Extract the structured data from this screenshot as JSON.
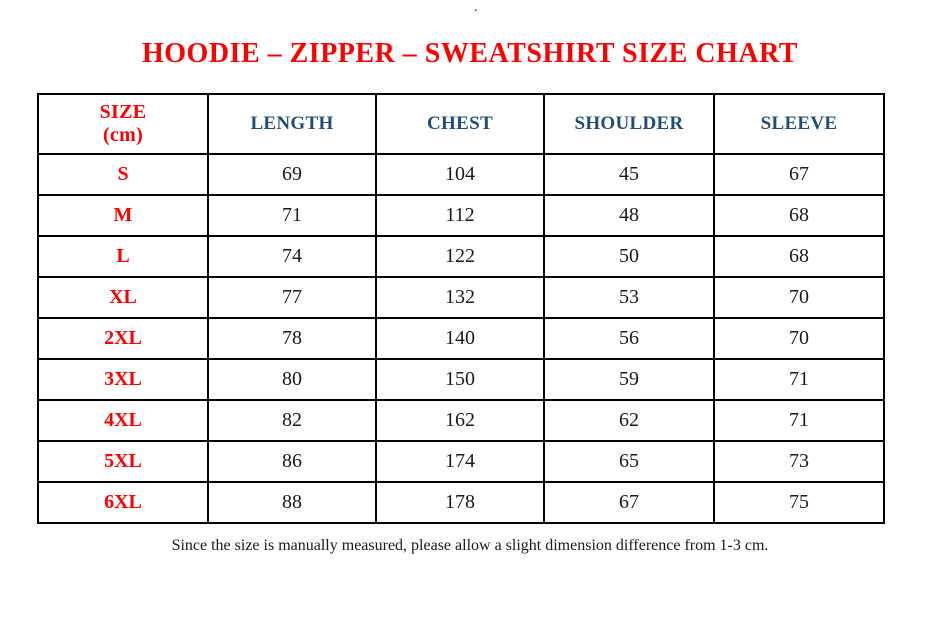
{
  "page": {
    "stray_dot": ".",
    "title": "HOODIE – ZIPPER – SWEATSHIRT SIZE CHART",
    "footnote": "Since the size is manually measured, please allow a slight dimension difference from 1-3 cm."
  },
  "table": {
    "header": {
      "size_line1": "SIZE",
      "size_line2": "(cm)",
      "columns": [
        "LENGTH",
        "CHEST",
        "SHOULDER",
        "SLEEVE"
      ]
    },
    "rows": [
      {
        "size": "S",
        "values": [
          "69",
          "104",
          "45",
          "67"
        ]
      },
      {
        "size": "M",
        "values": [
          "71",
          "112",
          "48",
          "68"
        ]
      },
      {
        "size": "L",
        "values": [
          "74",
          "122",
          "50",
          "68"
        ]
      },
      {
        "size": "XL",
        "values": [
          "77",
          "132",
          "53",
          "70"
        ]
      },
      {
        "size": "2XL",
        "values": [
          "78",
          "140",
          "56",
          "70"
        ]
      },
      {
        "size": "3XL",
        "values": [
          "80",
          "150",
          "59",
          "71"
        ]
      },
      {
        "size": "4XL",
        "values": [
          "82",
          "162",
          "62",
          "71"
        ]
      },
      {
        "size": "5XL",
        "values": [
          "86",
          "174",
          "65",
          "73"
        ]
      },
      {
        "size": "6XL",
        "values": [
          "88",
          "178",
          "67",
          "75"
        ]
      }
    ]
  },
  "colors": {
    "accent_red": "#FF0000",
    "header_blue": "#1F4E79",
    "text_black": "#1A1A1A",
    "border_black": "#000000",
    "page_background": "#FFFFFF"
  },
  "chart_data": {
    "type": "table",
    "title": "HOODIE – ZIPPER – SWEATSHIRT SIZE CHART",
    "unit": "cm",
    "columns": [
      "SIZE (cm)",
      "LENGTH",
      "CHEST",
      "SHOULDER",
      "SLEEVE"
    ],
    "rows": [
      [
        "S",
        69,
        104,
        45,
        67
      ],
      [
        "M",
        71,
        112,
        48,
        68
      ],
      [
        "L",
        74,
        122,
        50,
        68
      ],
      [
        "XL",
        77,
        132,
        53,
        70
      ],
      [
        "2XL",
        78,
        140,
        56,
        70
      ],
      [
        "3XL",
        80,
        150,
        59,
        71
      ],
      [
        "4XL",
        82,
        162,
        62,
        71
      ],
      [
        "5XL",
        86,
        174,
        65,
        73
      ],
      [
        "6XL",
        88,
        178,
        67,
        75
      ]
    ],
    "note": "Since the size is manually measured, please allow a slight dimension difference from 1-3 cm."
  }
}
